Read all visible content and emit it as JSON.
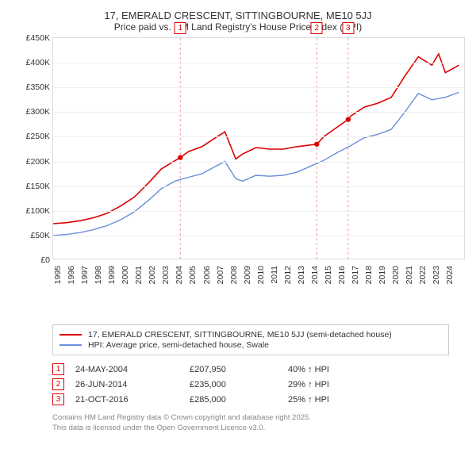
{
  "title": "17, EMERALD CRESCENT, SITTINGBOURNE, ME10 5JJ",
  "subtitle": "Price paid vs. HM Land Registry's House Price Index (HPI)",
  "chart": {
    "type": "line",
    "background_color": "#ffffff",
    "grid_color": "#eeeeee",
    "border_color": "#dddddd",
    "x_years": [
      1995,
      1996,
      1997,
      1998,
      1999,
      2000,
      2001,
      2002,
      2003,
      2004,
      2005,
      2006,
      2007,
      2008,
      2009,
      2010,
      2011,
      2012,
      2013,
      2014,
      2015,
      2016,
      2017,
      2018,
      2019,
      2020,
      2021,
      2022,
      2023,
      2024
    ],
    "xlim": [
      1995,
      2025.5
    ],
    "ylim": [
      0,
      450000
    ],
    "ytick_step": 50000,
    "yticks": [
      "£0",
      "£50K",
      "£100K",
      "£150K",
      "£200K",
      "£250K",
      "£300K",
      "£350K",
      "£400K",
      "£450K"
    ],
    "series": [
      {
        "name": "17, EMERALD CRESCENT, SITTINGBOURNE, ME10 5JJ (semi-detached house)",
        "color": "#dc0000",
        "width": 1.6,
        "x": [
          1995,
          1996,
          1997,
          1998,
          1999,
          2000,
          2001,
          2002,
          2003,
          2004.4,
          2005,
          2006,
          2007,
          2007.7,
          2008.5,
          2009,
          2010,
          2011,
          2012,
          2013,
          2014.5,
          2015,
          2016.8,
          2017,
          2018,
          2019,
          2020,
          2021,
          2022,
          2023,
          2023.5,
          2024,
          2025
        ],
        "y": [
          74000,
          76000,
          80000,
          86000,
          95000,
          110000,
          128000,
          155000,
          185000,
          207950,
          220000,
          230000,
          248000,
          260000,
          205000,
          215000,
          228000,
          225000,
          225000,
          230000,
          235000,
          250000,
          285000,
          292000,
          310000,
          318000,
          330000,
          373000,
          412000,
          395000,
          418000,
          380000,
          395000
        ]
      },
      {
        "name": "HPI: Average price, semi-detached house, Swale",
        "color": "#6a8fd8",
        "width": 1.4,
        "x": [
          1995,
          1996,
          1997,
          1998,
          1999,
          2000,
          2001,
          2002,
          2003,
          2004,
          2005,
          2006,
          2007,
          2007.7,
          2008.5,
          2009,
          2010,
          2011,
          2012,
          2013,
          2014,
          2015,
          2016,
          2017,
          2018,
          2019,
          2020,
          2021,
          2022,
          2023,
          2024,
          2025
        ],
        "y": [
          50000,
          52000,
          56000,
          62000,
          70000,
          82000,
          98000,
          120000,
          145000,
          160000,
          168000,
          175000,
          190000,
          200000,
          165000,
          160000,
          172000,
          170000,
          172000,
          178000,
          190000,
          202000,
          218000,
          232000,
          248000,
          255000,
          265000,
          300000,
          338000,
          325000,
          330000,
          340000
        ]
      }
    ],
    "sale_markers": [
      {
        "n": "1",
        "x": 2004.4,
        "y": 207950,
        "dash_color": "#e9a0a0"
      },
      {
        "n": "2",
        "x": 2014.49,
        "y": 235000,
        "dash_color": "#e9a0a0"
      },
      {
        "n": "3",
        "x": 2016.81,
        "y": 285000,
        "dash_color": "#e9a0a0"
      }
    ],
    "tick_fontsize": 10.5,
    "title_fontsize": 13
  },
  "legend": {
    "items": [
      {
        "color": "#dc0000",
        "label": "17, EMERALD CRESCENT, SITTINGBOURNE, ME10 5JJ (semi-detached house)"
      },
      {
        "color": "#6a8fd8",
        "label": "HPI: Average price, semi-detached house, Swale"
      }
    ]
  },
  "sales": [
    {
      "n": "1",
      "date": "24-MAY-2004",
      "price": "£207,950",
      "hpi": "40% ↑ HPI"
    },
    {
      "n": "2",
      "date": "26-JUN-2014",
      "price": "£235,000",
      "hpi": "29% ↑ HPI"
    },
    {
      "n": "3",
      "date": "21-OCT-2016",
      "price": "£285,000",
      "hpi": "25% ↑ HPI"
    }
  ],
  "footnote_line1": "Contains HM Land Registry data © Crown copyright and database right 2025.",
  "footnote_line2": "This data is licensed under the Open Government Licence v3.0."
}
